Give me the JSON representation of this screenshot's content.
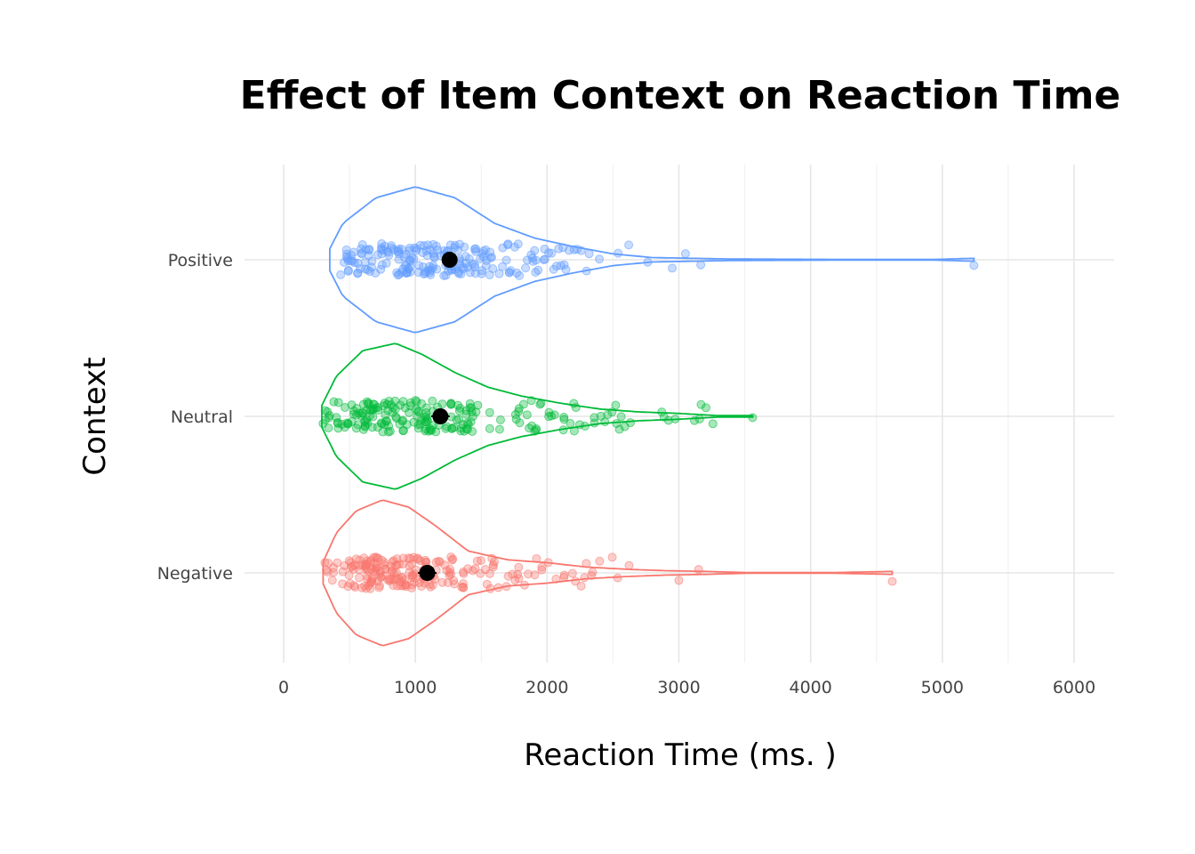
{
  "chart_data": {
    "type": "violin",
    "title": "Effect of Item Context on Reaction Time",
    "xlabel": "Reaction Time (ms. )",
    "ylabel": "Context",
    "xlim": [
      0,
      6000
    ],
    "x_ticks": [
      0,
      1000,
      2000,
      3000,
      4000,
      5000,
      6000
    ],
    "grid": true,
    "categories": [
      "Negative",
      "Neutral",
      "Positive"
    ],
    "series": [
      {
        "name": "Negative",
        "color": "#F8766D",
        "min": 300,
        "max": 4620,
        "mean": 1090,
        "sd_error": 70,
        "density": [
          [
            300,
            0.15
          ],
          [
            400,
            0.55
          ],
          [
            550,
            0.85
          ],
          [
            750,
            1.0
          ],
          [
            950,
            0.9
          ],
          [
            1150,
            0.65
          ],
          [
            1400,
            0.3
          ],
          [
            1700,
            0.18
          ],
          [
            2000,
            0.14
          ],
          [
            2300,
            0.08
          ],
          [
            2600,
            0.05
          ],
          [
            2900,
            0.03
          ],
          [
            3200,
            0.02
          ],
          [
            3500,
            0.005
          ],
          [
            4200,
            0.005
          ],
          [
            4620,
            0.02
          ]
        ],
        "outliers": [
          3000,
          3150,
          4620
        ]
      },
      {
        "name": "Neutral",
        "color": "#00BA38",
        "min": 290,
        "max": 3560,
        "mean": 1190,
        "sd_error": 70,
        "density": [
          [
            290,
            0.15
          ],
          [
            400,
            0.55
          ],
          [
            600,
            0.9
          ],
          [
            850,
            1.0
          ],
          [
            1050,
            0.85
          ],
          [
            1300,
            0.6
          ],
          [
            1550,
            0.4
          ],
          [
            1800,
            0.28
          ],
          [
            2100,
            0.18
          ],
          [
            2400,
            0.1
          ],
          [
            2700,
            0.06
          ],
          [
            3000,
            0.04
          ],
          [
            3300,
            0.01
          ],
          [
            3560,
            0.01
          ]
        ],
        "outliers": [
          2870,
          3560
        ]
      },
      {
        "name": "Positive",
        "color": "#619CFF",
        "min": 350,
        "max": 5240,
        "mean": 1260,
        "sd_error": 60,
        "density": [
          [
            350,
            0.15
          ],
          [
            450,
            0.5
          ],
          [
            700,
            0.85
          ],
          [
            1000,
            1.0
          ],
          [
            1300,
            0.85
          ],
          [
            1600,
            0.5
          ],
          [
            1900,
            0.3
          ],
          [
            2200,
            0.18
          ],
          [
            2500,
            0.08
          ],
          [
            2800,
            0.03
          ],
          [
            3100,
            0.02
          ],
          [
            3400,
            0.01
          ],
          [
            4200,
            0.005
          ],
          [
            4950,
            0.005
          ],
          [
            5240,
            0.02
          ]
        ],
        "outliers": [
          2950,
          3050,
          5240
        ]
      }
    ]
  }
}
